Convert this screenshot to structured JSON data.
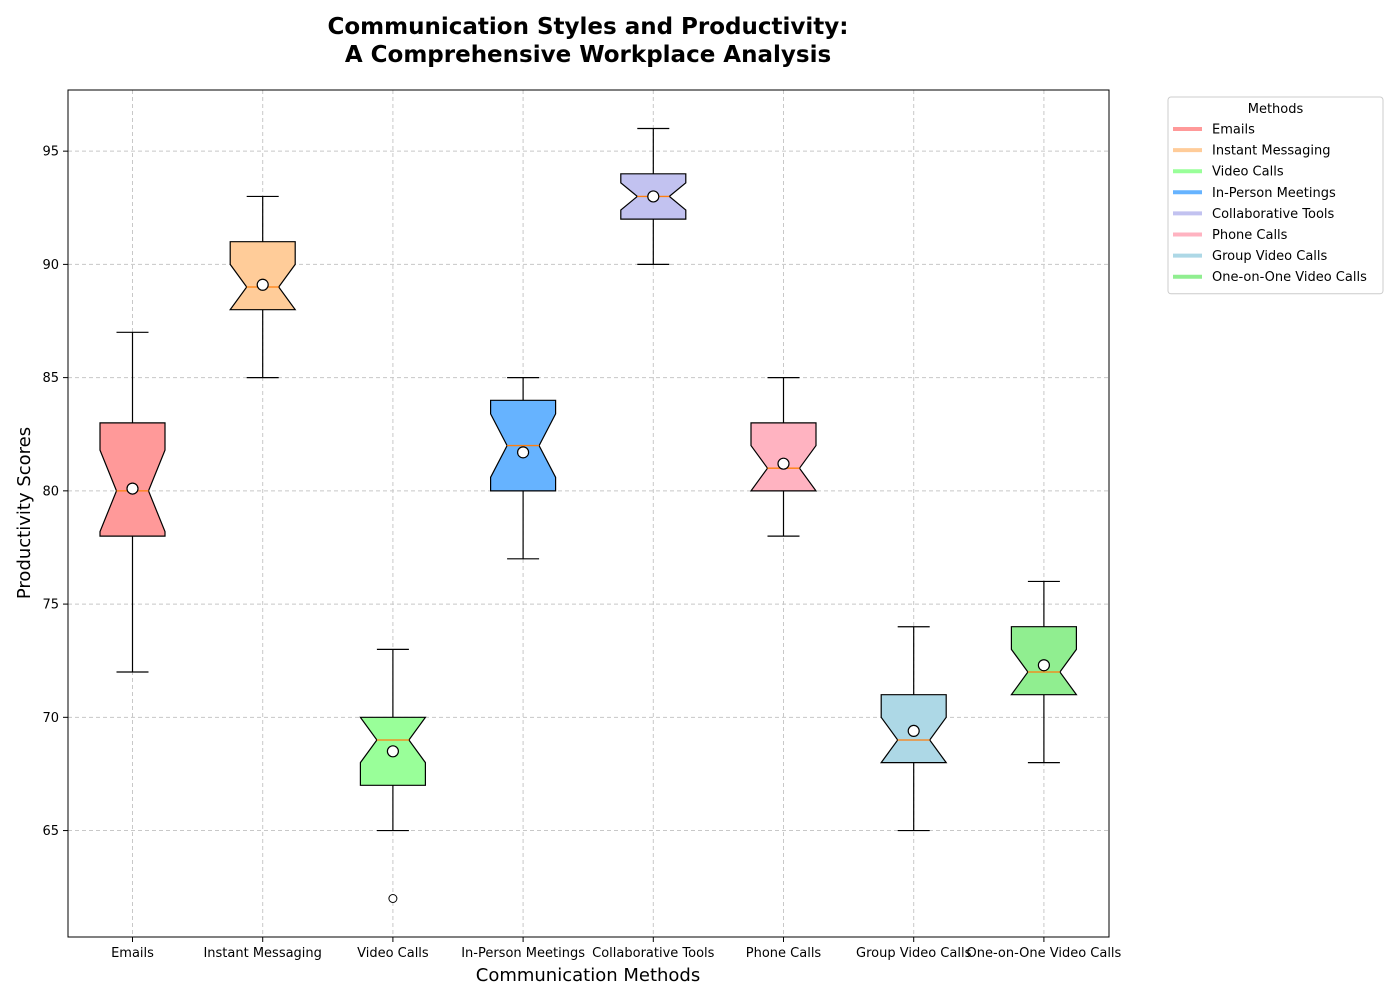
{
  "chart_data": {
    "type": "boxplot",
    "title_lines": [
      "Communication Styles and Productivity:",
      "A Comprehensive Workplace Analysis"
    ],
    "xlabel": "Communication Methods",
    "ylabel": "Productivity Scores",
    "ylim": [
      60.3,
      97.7
    ],
    "yticks": [
      65,
      70,
      75,
      80,
      85,
      90,
      95
    ],
    "grid": true,
    "notched": true,
    "show_means": true,
    "legend": {
      "title": "Methods",
      "position": "outside-upper-right"
    },
    "categories": [
      "Emails",
      "Instant Messaging",
      "Video Calls",
      "In-Person Meetings",
      "Collaborative Tools",
      "Phone Calls",
      "Group Video Calls",
      "One-on-One Video Calls"
    ],
    "series": [
      {
        "name": "Emails",
        "color": "#ff9999",
        "whisker_low": 72,
        "q1": 78,
        "median": 80,
        "q3": 83,
        "whisker_high": 87,
        "mean": 80.1,
        "notch_low": 78.2,
        "notch_high": 81.8,
        "outliers": []
      },
      {
        "name": "Instant Messaging",
        "color": "#ffcc99",
        "whisker_low": 85,
        "q1": 88,
        "median": 89,
        "q3": 91,
        "whisker_high": 93,
        "mean": 89.1,
        "notch_low": 88.0,
        "notch_high": 90.0,
        "outliers": []
      },
      {
        "name": "Video Calls",
        "color": "#99ff99",
        "whisker_low": 65,
        "q1": 67,
        "median": 69,
        "q3": 70,
        "whisker_high": 73,
        "mean": 68.5,
        "notch_low": 68.0,
        "notch_high": 70.0,
        "outliers": [
          62
        ]
      },
      {
        "name": "In-Person Meetings",
        "color": "#66b3ff",
        "whisker_low": 77,
        "q1": 80,
        "median": 82,
        "q3": 84,
        "whisker_high": 85,
        "mean": 81.7,
        "notch_low": 80.6,
        "notch_high": 83.4,
        "outliers": []
      },
      {
        "name": "Collaborative Tools",
        "color": "#c2c2f0",
        "whisker_low": 90,
        "q1": 92,
        "median": 93,
        "q3": 94,
        "whisker_high": 96,
        "mean": 93.0,
        "notch_low": 92.4,
        "notch_high": 93.6,
        "outliers": []
      },
      {
        "name": "Phone Calls",
        "color": "#ffb3c1",
        "whisker_low": 78,
        "q1": 80,
        "median": 81,
        "q3": 83,
        "whisker_high": 85,
        "mean": 81.2,
        "notch_low": 80.0,
        "notch_high": 82.0,
        "outliers": []
      },
      {
        "name": "Group Video Calls",
        "color": "#add8e6",
        "whisker_low": 65,
        "q1": 68,
        "median": 69,
        "q3": 71,
        "whisker_high": 74,
        "mean": 69.4,
        "notch_low": 68.0,
        "notch_high": 70.0,
        "outliers": []
      },
      {
        "name": "One-on-One Video Calls",
        "color": "#90ee90",
        "whisker_low": 68,
        "q1": 71,
        "median": 72,
        "q3": 74,
        "whisker_high": 76,
        "mean": 72.3,
        "notch_low": 71.0,
        "notch_high": 73.0,
        "outliers": []
      }
    ],
    "median_color": "#ff7f0e"
  }
}
